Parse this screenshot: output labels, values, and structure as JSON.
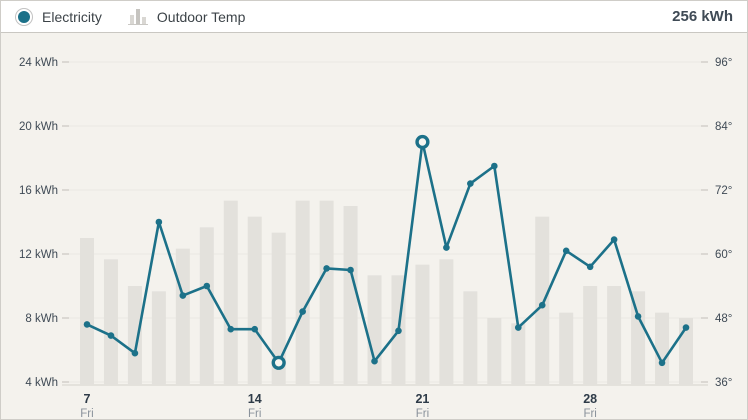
{
  "header": {
    "legend": [
      {
        "label": "Electricity",
        "icon": "electricity-dot-icon"
      },
      {
        "label": "Outdoor Temp",
        "icon": "outdoor-temp-bars-icon"
      }
    ],
    "total_label": "256 kWh"
  },
  "colors": {
    "electricity": "#1c7189",
    "highlight_fill": "#f7f5f0",
    "temp_bar": "#e3e1dc",
    "grid": "#eae8e2",
    "axis_line": "#d5d2cc",
    "tick": "#c2bfb9",
    "chart_bg": "#f4f2ed",
    "label_dark": "#3f4a55",
    "day_label": "#2e3b48",
    "weekday_label": "#8a929b"
  },
  "chart_data": {
    "type": "line+bar",
    "title": "",
    "n_points": 26,
    "grid": "horizontal",
    "legend_position": "top-left",
    "total": "256 kWh",
    "x_tick_labels": [
      {
        "index": 0,
        "day": "7",
        "weekday": "Fri"
      },
      {
        "index": 7,
        "day": "14",
        "weekday": "Fri"
      },
      {
        "index": 14,
        "day": "21",
        "weekday": "Fri"
      },
      {
        "index": 21,
        "day": "28",
        "weekday": "Fri"
      }
    ],
    "series": [
      {
        "name": "Electricity",
        "type": "line",
        "unit": "kWh",
        "color": "#1c7189",
        "values": [
          7.6,
          6.9,
          5.8,
          14.0,
          9.4,
          10.0,
          7.3,
          7.3,
          5.2,
          8.4,
          11.1,
          11.0,
          5.3,
          7.2,
          19.0,
          12.4,
          16.4,
          17.5,
          7.4,
          8.8,
          12.2,
          11.2,
          12.9,
          8.1,
          5.2,
          7.4
        ],
        "highlighted_indices": [
          8,
          14
        ]
      },
      {
        "name": "Outdoor Temp",
        "type": "bar",
        "unit": "°F",
        "color": "#e3e1dc",
        "values": [
          63,
          59,
          54,
          53,
          61,
          65,
          70,
          67,
          64,
          70,
          70,
          69,
          56,
          56,
          58,
          59,
          53,
          48,
          47,
          67,
          49,
          54,
          54,
          53,
          49,
          48
        ]
      }
    ],
    "left_axis": {
      "tick_labels": [
        "24 kWh",
        "20 kWh",
        "16 kWh",
        "12 kWh",
        "8 kWh",
        "4 kWh"
      ],
      "min": 4,
      "max": 24
    },
    "right_axis": {
      "tick_labels": [
        "96°",
        "84°",
        "72°",
        "60°",
        "48°",
        "36°"
      ],
      "min": 36,
      "max": 96
    }
  }
}
